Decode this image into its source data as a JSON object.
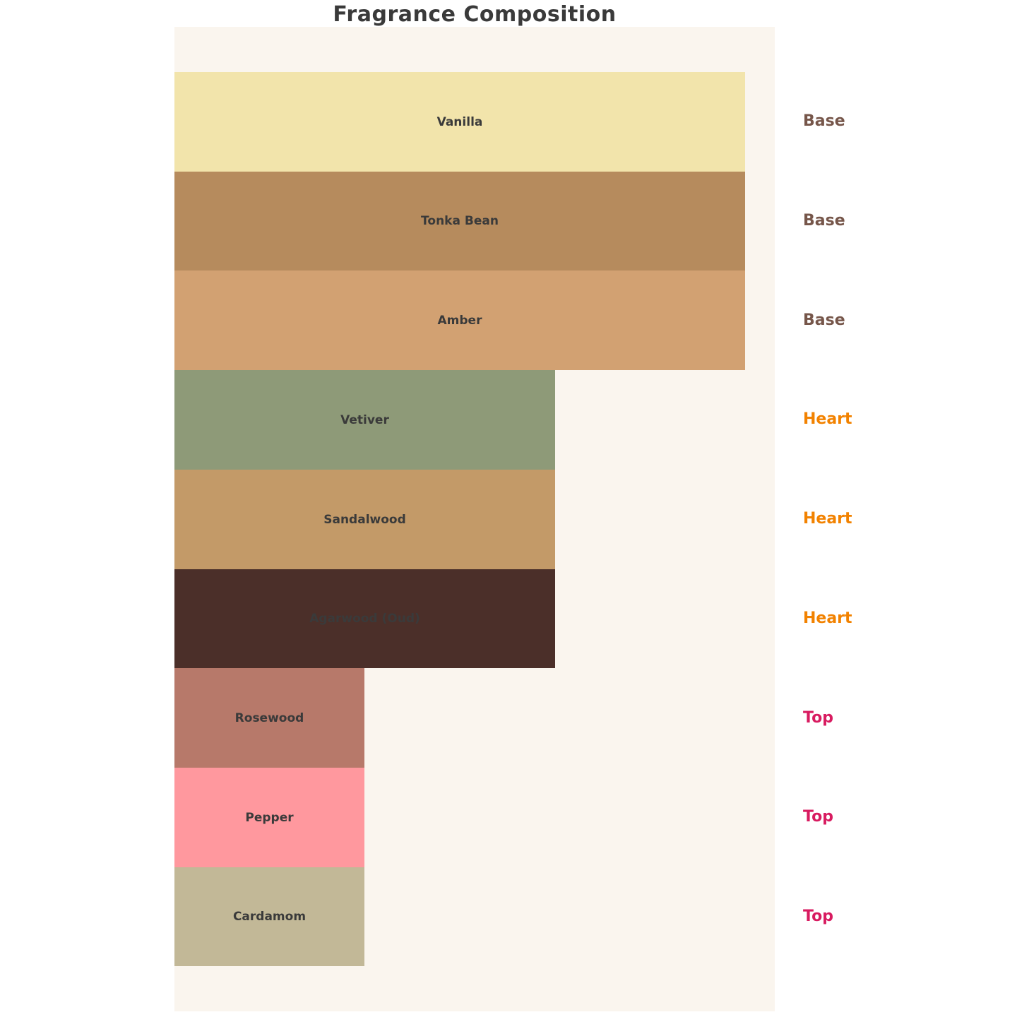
{
  "header": {
    "title": "Fragrance Composition",
    "title_color": "#3a3a3a"
  },
  "panel": {
    "background": "#faf5ee"
  },
  "chart_data": {
    "type": "bar",
    "orientation": "horizontal",
    "title": "Fragrance Composition",
    "xlabel": "",
    "ylabel": "",
    "grid": false,
    "legend": false,
    "axis_ticks_visible": false,
    "xlim": [
      0,
      31.55
    ],
    "values_note": "no axis labels shown; values estimated from bar width ratio 3:2:1",
    "categories": [
      "Vanilla",
      "Tonka Bean",
      "Amber",
      "Vetiver",
      "Sandalwood",
      "Agarwood (Oud)",
      "Rosewood",
      "Pepper",
      "Cardamom"
    ],
    "values": [
      30,
      30,
      30,
      20,
      20,
      20,
      10,
      10,
      10
    ],
    "bar_label_color": "#3a3a3a",
    "bars": [
      {
        "label": "Vanilla",
        "note": "Base",
        "value": 30,
        "color": "#f2e4ab"
      },
      {
        "label": "Tonka Bean",
        "note": "Base",
        "value": 30,
        "color": "#b68b5d"
      },
      {
        "label": "Amber",
        "note": "Base",
        "value": 30,
        "color": "#d2a172"
      },
      {
        "label": "Vetiver",
        "note": "Heart",
        "value": 20,
        "color": "#8e9a78"
      },
      {
        "label": "Sandalwood",
        "note": "Heart",
        "value": 20,
        "color": "#c39a68"
      },
      {
        "label": "Agarwood (Oud)",
        "note": "Heart",
        "value": 20,
        "color": "#4b2f29"
      },
      {
        "label": "Rosewood",
        "note": "Top",
        "value": 10,
        "color": "#b7796a"
      },
      {
        "label": "Pepper",
        "note": "Top",
        "value": 10,
        "color": "#ff989e"
      },
      {
        "label": "Cardamom",
        "note": "Top",
        "value": 10,
        "color": "#c2b897"
      }
    ],
    "note_groups": [
      {
        "name": "Base",
        "color": "#76564a"
      },
      {
        "name": "Heart",
        "color": "#f28200"
      },
      {
        "name": "Top",
        "color": "#d81b60"
      }
    ]
  }
}
